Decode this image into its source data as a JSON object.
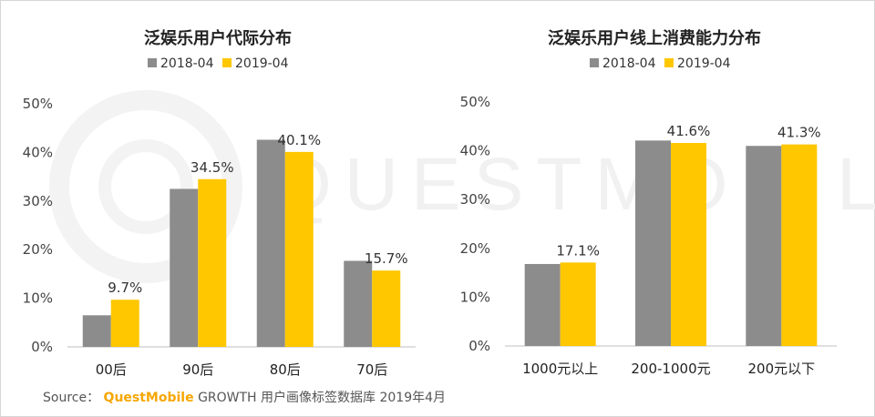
{
  "colors": {
    "series_2018": "#8c8c8c",
    "series_2019": "#ffc700",
    "brand": "#f7a600"
  },
  "watermark": {
    "text": "QUESTMOBILE"
  },
  "footer": {
    "label": "Source：",
    "brand": "QuestMobile",
    "text": "GROWTH 用户画像标签数据库 2019年4月"
  },
  "chart_data": [
    {
      "type": "bar",
      "title": "泛娱乐用户代际分布",
      "categories": [
        "00后",
        "90后",
        "80后",
        "70后"
      ],
      "series": [
        {
          "name": "2018-04",
          "values": [
            6.5,
            32.5,
            42.6,
            17.7
          ]
        },
        {
          "name": "2019-04",
          "values": [
            9.7,
            34.5,
            40.1,
            15.7
          ]
        }
      ],
      "data_labels": {
        "series": "2019-04",
        "labels": [
          "9.7%",
          "34.5%",
          "40.1%",
          "15.7%"
        ]
      },
      "yticks": [
        "0%",
        "10%",
        "20%",
        "30%",
        "40%",
        "50%"
      ],
      "ylim": [
        0,
        50
      ],
      "legend": "top-center",
      "grid": false
    },
    {
      "type": "bar",
      "title": "泛娱乐用户线上消费能力分布",
      "categories": [
        "1000元以上",
        "200-1000元",
        "200元以下"
      ],
      "series": [
        {
          "name": "2018-04",
          "values": [
            16.8,
            42.1,
            41.0
          ]
        },
        {
          "name": "2019-04",
          "values": [
            17.1,
            41.6,
            41.3
          ]
        }
      ],
      "data_labels": {
        "series": "2019-04",
        "labels": [
          "17.1%",
          "41.6%",
          "41.3%"
        ]
      },
      "yticks": [
        "0%",
        "10%",
        "20%",
        "30%",
        "40%",
        "50%"
      ],
      "ylim": [
        0,
        50
      ],
      "legend": "top-center",
      "grid": false
    }
  ]
}
